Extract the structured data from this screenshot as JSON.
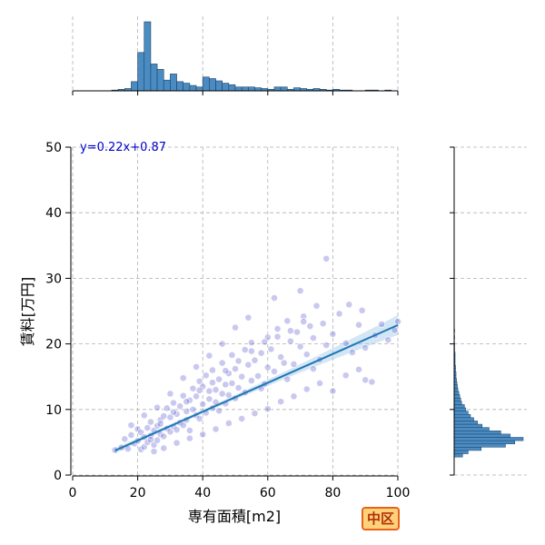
{
  "chart_data": {
    "type": "scatter",
    "title": "",
    "xlabel": "専有面積[m2]",
    "ylabel": "賃料[万円]",
    "xlim": [
      0,
      100
    ],
    "ylim": [
      0,
      50
    ],
    "x_ticks": [
      "0",
      "20",
      "40",
      "60",
      "80",
      "100"
    ],
    "y_ticks": [
      "0",
      "10",
      "20",
      "30",
      "40",
      "50"
    ],
    "grid": true,
    "regression": {
      "label": "y=0.22x+0.87",
      "slope": 0.22,
      "intercept": 0.87,
      "x_range": [
        13,
        100
      ]
    },
    "scatter_color": "#4d4dcc",
    "line_color": "#1f77b4",
    "hist_color": "#4a8cc2",
    "scatter_points": [
      [
        13,
        3.8
      ],
      [
        15,
        4.2
      ],
      [
        16,
        5.5
      ],
      [
        17,
        4.0
      ],
      [
        18,
        6.1
      ],
      [
        19,
        4.8
      ],
      [
        20,
        5.2
      ],
      [
        20,
        7.0
      ],
      [
        21,
        3.9
      ],
      [
        21,
        6.5
      ],
      [
        22,
        5.8
      ],
      [
        22,
        4.3
      ],
      [
        23,
        7.2
      ],
      [
        23,
        5.0
      ],
      [
        24,
        6.0
      ],
      [
        24,
        8.1
      ],
      [
        25,
        4.6
      ],
      [
        25,
        6.8
      ],
      [
        26,
        7.5
      ],
      [
        26,
        5.3
      ],
      [
        27,
        8.4
      ],
      [
        27,
        6.2
      ],
      [
        28,
        9.0
      ],
      [
        28,
        5.9
      ],
      [
        29,
        7.1
      ],
      [
        29,
        10.2
      ],
      [
        30,
        6.6
      ],
      [
        30,
        8.8
      ],
      [
        31,
        7.4
      ],
      [
        31,
        11.0
      ],
      [
        32,
        9.3
      ],
      [
        32,
        6.9
      ],
      [
        33,
        10.5
      ],
      [
        33,
        8.0
      ],
      [
        34,
        7.6
      ],
      [
        34,
        12.1
      ],
      [
        35,
        9.7
      ],
      [
        35,
        8.4
      ],
      [
        36,
        11.4
      ],
      [
        36,
        6.8
      ],
      [
        37,
        10.0
      ],
      [
        37,
        13.2
      ],
      [
        38,
        9.1
      ],
      [
        38,
        12.0
      ],
      [
        39,
        8.6
      ],
      [
        39,
        14.3
      ],
      [
        40,
        10.8
      ],
      [
        40,
        13.5
      ],
      [
        41,
        9.5
      ],
      [
        41,
        15.2
      ],
      [
        42,
        11.6
      ],
      [
        42,
        12.8
      ],
      [
        43,
        10.2
      ],
      [
        43,
        16.0
      ],
      [
        44,
        13.0
      ],
      [
        44,
        11.1
      ],
      [
        45,
        14.6
      ],
      [
        45,
        9.8
      ],
      [
        46,
        12.4
      ],
      [
        46,
        17.1
      ],
      [
        47,
        13.8
      ],
      [
        47,
        10.9
      ],
      [
        48,
        15.5
      ],
      [
        48,
        12.2
      ],
      [
        49,
        14.0
      ],
      [
        49,
        18.3
      ],
      [
        50,
        11.7
      ],
      [
        50,
        16.2
      ],
      [
        51,
        13.3
      ],
      [
        52,
        15.0
      ],
      [
        53,
        19.1
      ],
      [
        53,
        12.6
      ],
      [
        54,
        16.8
      ],
      [
        55,
        14.4
      ],
      [
        55,
        20.2
      ],
      [
        56,
        17.5
      ],
      [
        57,
        15.1
      ],
      [
        58,
        18.6
      ],
      [
        59,
        13.9
      ],
      [
        60,
        21.0
      ],
      [
        60,
        16.4
      ],
      [
        61,
        19.2
      ],
      [
        62,
        15.8
      ],
      [
        63,
        22.3
      ],
      [
        64,
        18.0
      ],
      [
        65,
        17.1
      ],
      [
        66,
        23.5
      ],
      [
        67,
        20.4
      ],
      [
        68,
        16.9
      ],
      [
        69,
        21.8
      ],
      [
        70,
        19.6
      ],
      [
        71,
        24.2
      ],
      [
        72,
        18.4
      ],
      [
        73,
        22.7
      ],
      [
        74,
        20.9
      ],
      [
        75,
        25.8
      ],
      [
        76,
        17.6
      ],
      [
        77,
        23.1
      ],
      [
        78,
        33.0
      ],
      [
        78,
        19.8
      ],
      [
        80,
        21.5
      ],
      [
        82,
        24.6
      ],
      [
        84,
        20.1
      ],
      [
        85,
        26.0
      ],
      [
        86,
        18.7
      ],
      [
        88,
        22.9
      ],
      [
        89,
        25.1
      ],
      [
        90,
        19.4
      ],
      [
        92,
        14.2
      ],
      [
        93,
        21.3
      ],
      [
        95,
        23.0
      ],
      [
        97,
        20.6
      ],
      [
        99,
        22.1
      ],
      [
        100,
        23.4
      ],
      [
        18,
        7.6
      ],
      [
        22,
        9.1
      ],
      [
        26,
        10.3
      ],
      [
        30,
        12.4
      ],
      [
        34,
        14.8
      ],
      [
        38,
        16.5
      ],
      [
        42,
        18.2
      ],
      [
        46,
        20.0
      ],
      [
        50,
        22.5
      ],
      [
        54,
        24.0
      ],
      [
        58,
        13.2
      ],
      [
        62,
        27.0
      ],
      [
        66,
        14.6
      ],
      [
        70,
        28.1
      ],
      [
        74,
        16.2
      ],
      [
        90,
        14.5
      ],
      [
        25,
        3.6
      ],
      [
        28,
        4.1
      ],
      [
        32,
        4.9
      ],
      [
        36,
        5.6
      ],
      [
        40,
        6.2
      ],
      [
        44,
        7.0
      ],
      [
        48,
        7.9
      ],
      [
        52,
        8.6
      ],
      [
        56,
        9.4
      ],
      [
        60,
        10.1
      ],
      [
        64,
        11.2
      ],
      [
        68,
        12.0
      ],
      [
        72,
        13.1
      ],
      [
        76,
        14.0
      ],
      [
        80,
        12.8
      ],
      [
        84,
        15.2
      ],
      [
        88,
        16.1
      ],
      [
        24,
        5.4
      ],
      [
        27,
        7.8
      ],
      [
        31,
        9.6
      ],
      [
        35,
        11.2
      ],
      [
        39,
        12.9
      ],
      [
        43,
        14.1
      ],
      [
        47,
        15.9
      ],
      [
        51,
        17.4
      ],
      [
        55,
        18.9
      ],
      [
        59,
        20.3
      ],
      [
        63,
        21.1
      ],
      [
        67,
        22.0
      ],
      [
        71,
        23.4
      ]
    ],
    "top_hist": {
      "bin_width": 2,
      "counts": [
        [
          13,
          1
        ],
        [
          15,
          2
        ],
        [
          17,
          3
        ],
        [
          19,
          12
        ],
        [
          21,
          50
        ],
        [
          23,
          90
        ],
        [
          25,
          35
        ],
        [
          27,
          28
        ],
        [
          29,
          14
        ],
        [
          31,
          22
        ],
        [
          33,
          12
        ],
        [
          35,
          10
        ],
        [
          37,
          7
        ],
        [
          39,
          5
        ],
        [
          41,
          18
        ],
        [
          43,
          16
        ],
        [
          45,
          13
        ],
        [
          47,
          10
        ],
        [
          49,
          8
        ],
        [
          51,
          5
        ],
        [
          53,
          5
        ],
        [
          55,
          5
        ],
        [
          57,
          4
        ],
        [
          59,
          3
        ],
        [
          61,
          2
        ],
        [
          63,
          5
        ],
        [
          65,
          5
        ],
        [
          67,
          2
        ],
        [
          69,
          4
        ],
        [
          71,
          3
        ],
        [
          73,
          2
        ],
        [
          75,
          3
        ],
        [
          77,
          2
        ],
        [
          79,
          1
        ],
        [
          81,
          2
        ],
        [
          83,
          1
        ],
        [
          85,
          1
        ],
        [
          91,
          1
        ],
        [
          93,
          1
        ],
        [
          97,
          1
        ]
      ]
    },
    "right_hist": {
      "bin_width": 0.5,
      "counts": [
        [
          3.0,
          18
        ],
        [
          3.5,
          30
        ],
        [
          4.0,
          58
        ],
        [
          4.5,
          110
        ],
        [
          5.0,
          130
        ],
        [
          5.5,
          148
        ],
        [
          6.0,
          120
        ],
        [
          6.5,
          100
        ],
        [
          7.0,
          75
        ],
        [
          7.5,
          60
        ],
        [
          8.0,
          50
        ],
        [
          8.5,
          42
        ],
        [
          9.0,
          35
        ],
        [
          9.5,
          30
        ],
        [
          10.0,
          25
        ],
        [
          10.5,
          22
        ],
        [
          11.0,
          16
        ],
        [
          11.5,
          14
        ],
        [
          12.0,
          12
        ],
        [
          12.5,
          10
        ],
        [
          13.0,
          8
        ],
        [
          13.5,
          7
        ],
        [
          14.0,
          6
        ],
        [
          14.5,
          5
        ],
        [
          15.0,
          4
        ],
        [
          15.5,
          4
        ],
        [
          16.0,
          3
        ],
        [
          16.5,
          3
        ],
        [
          17.0,
          2
        ],
        [
          17.5,
          2
        ],
        [
          18.0,
          2
        ],
        [
          18.5,
          2
        ],
        [
          19.0,
          1
        ],
        [
          19.5,
          1
        ],
        [
          20.0,
          1
        ],
        [
          21.0,
          1
        ],
        [
          22.0,
          1
        ]
      ]
    }
  },
  "badge": {
    "label": "中区"
  }
}
